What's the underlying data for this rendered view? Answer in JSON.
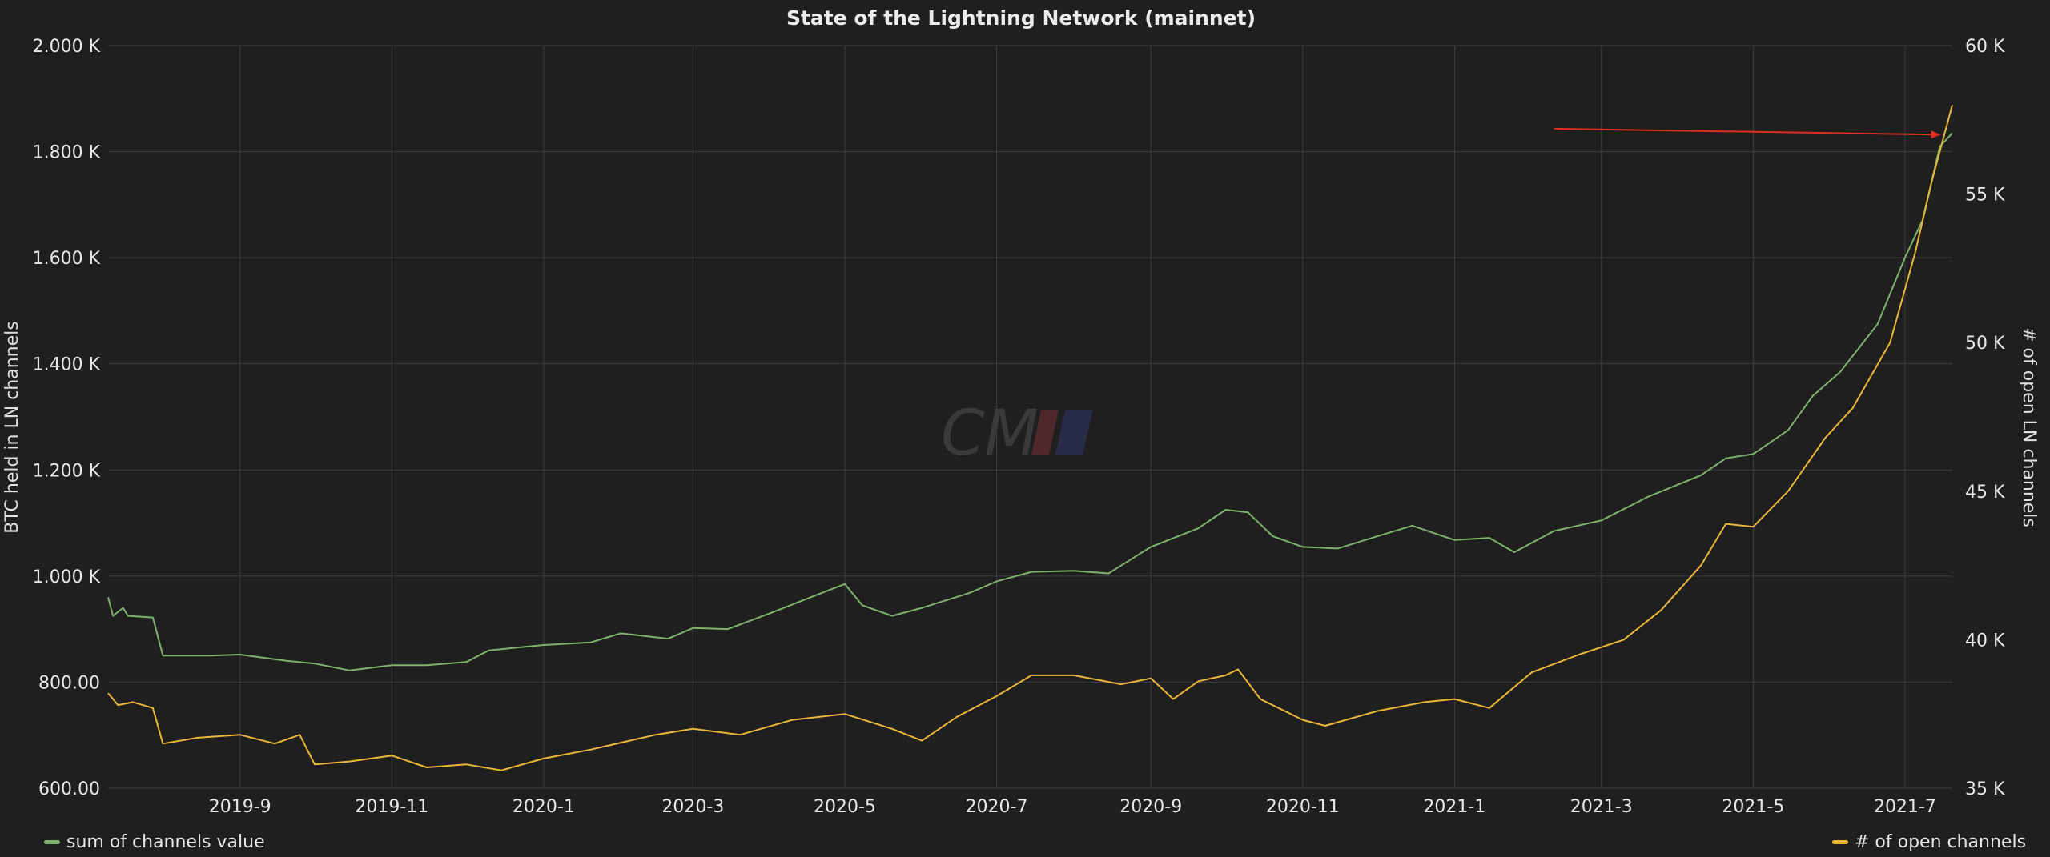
{
  "chart_data": {
    "type": "line",
    "title": "State of the Lightning Network (mainnet)",
    "ylabel": "BTC held in LN channels",
    "y2label": "# of open LN channels",
    "ylim": [
      600,
      2000
    ],
    "y2lim": [
      35000,
      60000
    ],
    "yticks": [
      "600.00",
      "800.00",
      "1.000 K",
      "1.200 K",
      "1.400 K",
      "1.600 K",
      "1.800 K",
      "2.000 K"
    ],
    "y2ticks": [
      "35 K",
      "40 K",
      "45 K",
      "50 K",
      "55 K",
      "60 K"
    ],
    "x_tick_labels": [
      "2019-9",
      "2019-11",
      "2020-1",
      "2020-3",
      "2020-5",
      "2020-7",
      "2020-9",
      "2020-11",
      "2021-1",
      "2021-3",
      "2021-5",
      "2021-7"
    ],
    "x_range": [
      "2019-7-10",
      "2021-7-20"
    ],
    "grid": true,
    "watermark": "CM",
    "series": [
      {
        "name": "sum of channels value",
        "axis": "left",
        "color": "#7eb26d",
        "points": [
          [
            "2019-7-10",
            960
          ],
          [
            "2019-7-12",
            925
          ],
          [
            "2019-7-16",
            940
          ],
          [
            "2019-7-18",
            925
          ],
          [
            "2019-7-28",
            922
          ],
          [
            "2019-8-1",
            850
          ],
          [
            "2019-8-20",
            850
          ],
          [
            "2019-9-1",
            852
          ],
          [
            "2019-9-20",
            840
          ],
          [
            "2019-10-1",
            835
          ],
          [
            "2019-10-15",
            822
          ],
          [
            "2019-11-1",
            832
          ],
          [
            "2019-11-15",
            832
          ],
          [
            "2019-12-1",
            838
          ],
          [
            "2019-12-10",
            860
          ],
          [
            "2020-1-1",
            870
          ],
          [
            "2020-1-20",
            875
          ],
          [
            "2020-2-1",
            892
          ],
          [
            "2020-2-20",
            882
          ],
          [
            "2020-3-1",
            902
          ],
          [
            "2020-3-15",
            900
          ],
          [
            "2020-4-1",
            930
          ],
          [
            "2020-4-20",
            965
          ],
          [
            "2020-5-1",
            985
          ],
          [
            "2020-5-8",
            945
          ],
          [
            "2020-5-20",
            925
          ],
          [
            "2020-6-1",
            940
          ],
          [
            "2020-6-20",
            968
          ],
          [
            "2020-7-1",
            990
          ],
          [
            "2020-7-15",
            1008
          ],
          [
            "2020-8-1",
            1010
          ],
          [
            "2020-8-15",
            1005
          ],
          [
            "2020-9-1",
            1055
          ],
          [
            "2020-9-20",
            1090
          ],
          [
            "2020-10-1",
            1125
          ],
          [
            "2020-10-10",
            1120
          ],
          [
            "2020-10-20",
            1075
          ],
          [
            "2020-11-1",
            1055
          ],
          [
            "2020-11-15",
            1052
          ],
          [
            "2020-12-1",
            1075
          ],
          [
            "2020-12-15",
            1095
          ],
          [
            "2021-1-1",
            1068
          ],
          [
            "2021-1-15",
            1072
          ],
          [
            "2021-1-25",
            1045
          ],
          [
            "2021-2-10",
            1085
          ],
          [
            "2021-3-1",
            1105
          ],
          [
            "2021-3-20",
            1150
          ],
          [
            "2021-4-10",
            1190
          ],
          [
            "2021-4-20",
            1222
          ],
          [
            "2021-5-1",
            1230
          ],
          [
            "2021-5-15",
            1275
          ],
          [
            "2021-5-25",
            1340
          ],
          [
            "2021-6-5",
            1385
          ],
          [
            "2021-6-20",
            1475
          ],
          [
            "2021-7-1",
            1600
          ],
          [
            "2021-7-8",
            1670
          ],
          [
            "2021-7-15",
            1810
          ],
          [
            "2021-7-20",
            1835
          ]
        ]
      },
      {
        "name": "# of open channels",
        "axis": "right",
        "color": "#eab839",
        "points": [
          [
            "2019-7-10",
            38200
          ],
          [
            "2019-7-14",
            37800
          ],
          [
            "2019-7-20",
            37900
          ],
          [
            "2019-7-28",
            37700
          ],
          [
            "2019-8-1",
            36500
          ],
          [
            "2019-8-15",
            36700
          ],
          [
            "2019-9-1",
            36800
          ],
          [
            "2019-9-15",
            36500
          ],
          [
            "2019-9-25",
            36800
          ],
          [
            "2019-10-1",
            35800
          ],
          [
            "2019-10-15",
            35900
          ],
          [
            "2019-11-1",
            36100
          ],
          [
            "2019-11-15",
            35700
          ],
          [
            "2019-12-1",
            35800
          ],
          [
            "2019-12-15",
            35600
          ],
          [
            "2020-1-1",
            36000
          ],
          [
            "2020-1-20",
            36300
          ],
          [
            "2020-2-15",
            36800
          ],
          [
            "2020-3-1",
            37000
          ],
          [
            "2020-3-20",
            36800
          ],
          [
            "2020-4-10",
            37300
          ],
          [
            "2020-5-1",
            37500
          ],
          [
            "2020-5-20",
            37000
          ],
          [
            "2020-6-1",
            36600
          ],
          [
            "2020-6-15",
            37400
          ],
          [
            "2020-7-1",
            38100
          ],
          [
            "2020-7-15",
            38800
          ],
          [
            "2020-8-1",
            38800
          ],
          [
            "2020-8-20",
            38500
          ],
          [
            "2020-9-1",
            38700
          ],
          [
            "2020-9-10",
            38000
          ],
          [
            "2020-9-20",
            38600
          ],
          [
            "2020-10-1",
            38800
          ],
          [
            "2020-10-6",
            39000
          ],
          [
            "2020-10-15",
            38000
          ],
          [
            "2020-11-1",
            37300
          ],
          [
            "2020-11-10",
            37100
          ],
          [
            "2020-12-1",
            37600
          ],
          [
            "2020-12-20",
            37900
          ],
          [
            "2021-1-1",
            38000
          ],
          [
            "2021-1-15",
            37700
          ],
          [
            "2021-2-1",
            38900
          ],
          [
            "2021-2-20",
            39500
          ],
          [
            "2021-3-10",
            40000
          ],
          [
            "2021-3-25",
            41000
          ],
          [
            "2021-4-10",
            42500
          ],
          [
            "2021-4-20",
            43900
          ],
          [
            "2021-5-1",
            43800
          ],
          [
            "2021-5-15",
            45000
          ],
          [
            "2021-5-30",
            46800
          ],
          [
            "2021-6-10",
            47800
          ],
          [
            "2021-6-25",
            50000
          ],
          [
            "2021-7-5",
            53000
          ],
          [
            "2021-7-12",
            55500
          ],
          [
            "2021-7-20",
            58000
          ]
        ]
      }
    ]
  },
  "legend": {
    "left_label": "sum of channels value",
    "right_label": "# of open channels"
  },
  "annotation": {
    "type": "arrow",
    "color": "#e02f1f",
    "from": [
      "2021-2-10",
      57200
    ],
    "to": [
      "2021-7-15",
      57000
    ]
  },
  "colors": {
    "background": "#1f1f20",
    "grid": "#3f3f41",
    "green": "#7eb26d",
    "yellow": "#eab839",
    "arrow": "#e02f1f"
  }
}
